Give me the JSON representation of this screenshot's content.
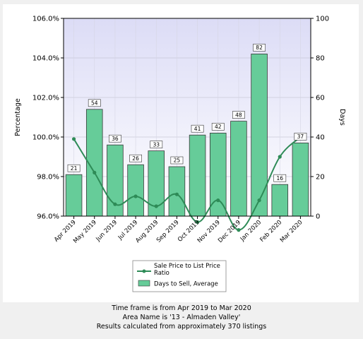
{
  "chart_data": {
    "type": "bar",
    "categories": [
      "Apr 2019",
      "May 2019",
      "Jun 2019",
      "Jul 2019",
      "Aug 2019",
      "Sep 2019",
      "Oct 2019",
      "Nov 2019",
      "Dec 2019",
      "Jan 2020",
      "Feb 2020",
      "Mar 2020"
    ],
    "left_axis": {
      "label": "Percentage",
      "ylim": [
        96.0,
        106.0
      ],
      "ticks": [
        "96.0%",
        "98.0%",
        "100.0%",
        "102.0%",
        "104.0%",
        "106.0%"
      ],
      "tick_values": [
        96,
        98,
        100,
        102,
        104,
        106
      ]
    },
    "right_axis": {
      "label": "Days",
      "ylim": [
        0,
        100
      ],
      "ticks": [
        "0",
        "20",
        "40",
        "60",
        "80",
        "100"
      ],
      "tick_values": [
        0,
        20,
        40,
        60,
        80,
        100
      ]
    },
    "series": [
      {
        "name": "Days to Sell, Average",
        "type": "bar",
        "axis": "right",
        "values": [
          21,
          54,
          36,
          26,
          33,
          25,
          41,
          42,
          48,
          82,
          16,
          37
        ],
        "labels": [
          "21",
          "54",
          "36",
          "26",
          "33",
          "25",
          "41",
          "42",
          "48",
          "82",
          "16",
          "37"
        ],
        "color": "#66cc99"
      },
      {
        "name": "Sale Price to List Price Ratio",
        "type": "line",
        "axis": "left",
        "values": [
          99.9,
          98.2,
          96.6,
          97.0,
          96.5,
          97.1,
          95.7,
          96.8,
          95.3,
          96.8,
          99.0,
          100.0
        ],
        "color": "#2e8b57"
      }
    ],
    "legend_position": "bottom",
    "grid": true
  },
  "footer": {
    "line1": "Time frame is from Apr 2019 to Mar 2020",
    "line2": "Area Name is '13 - Almaden Valley'",
    "line3": "Results calculated from approximately 370 listings"
  }
}
